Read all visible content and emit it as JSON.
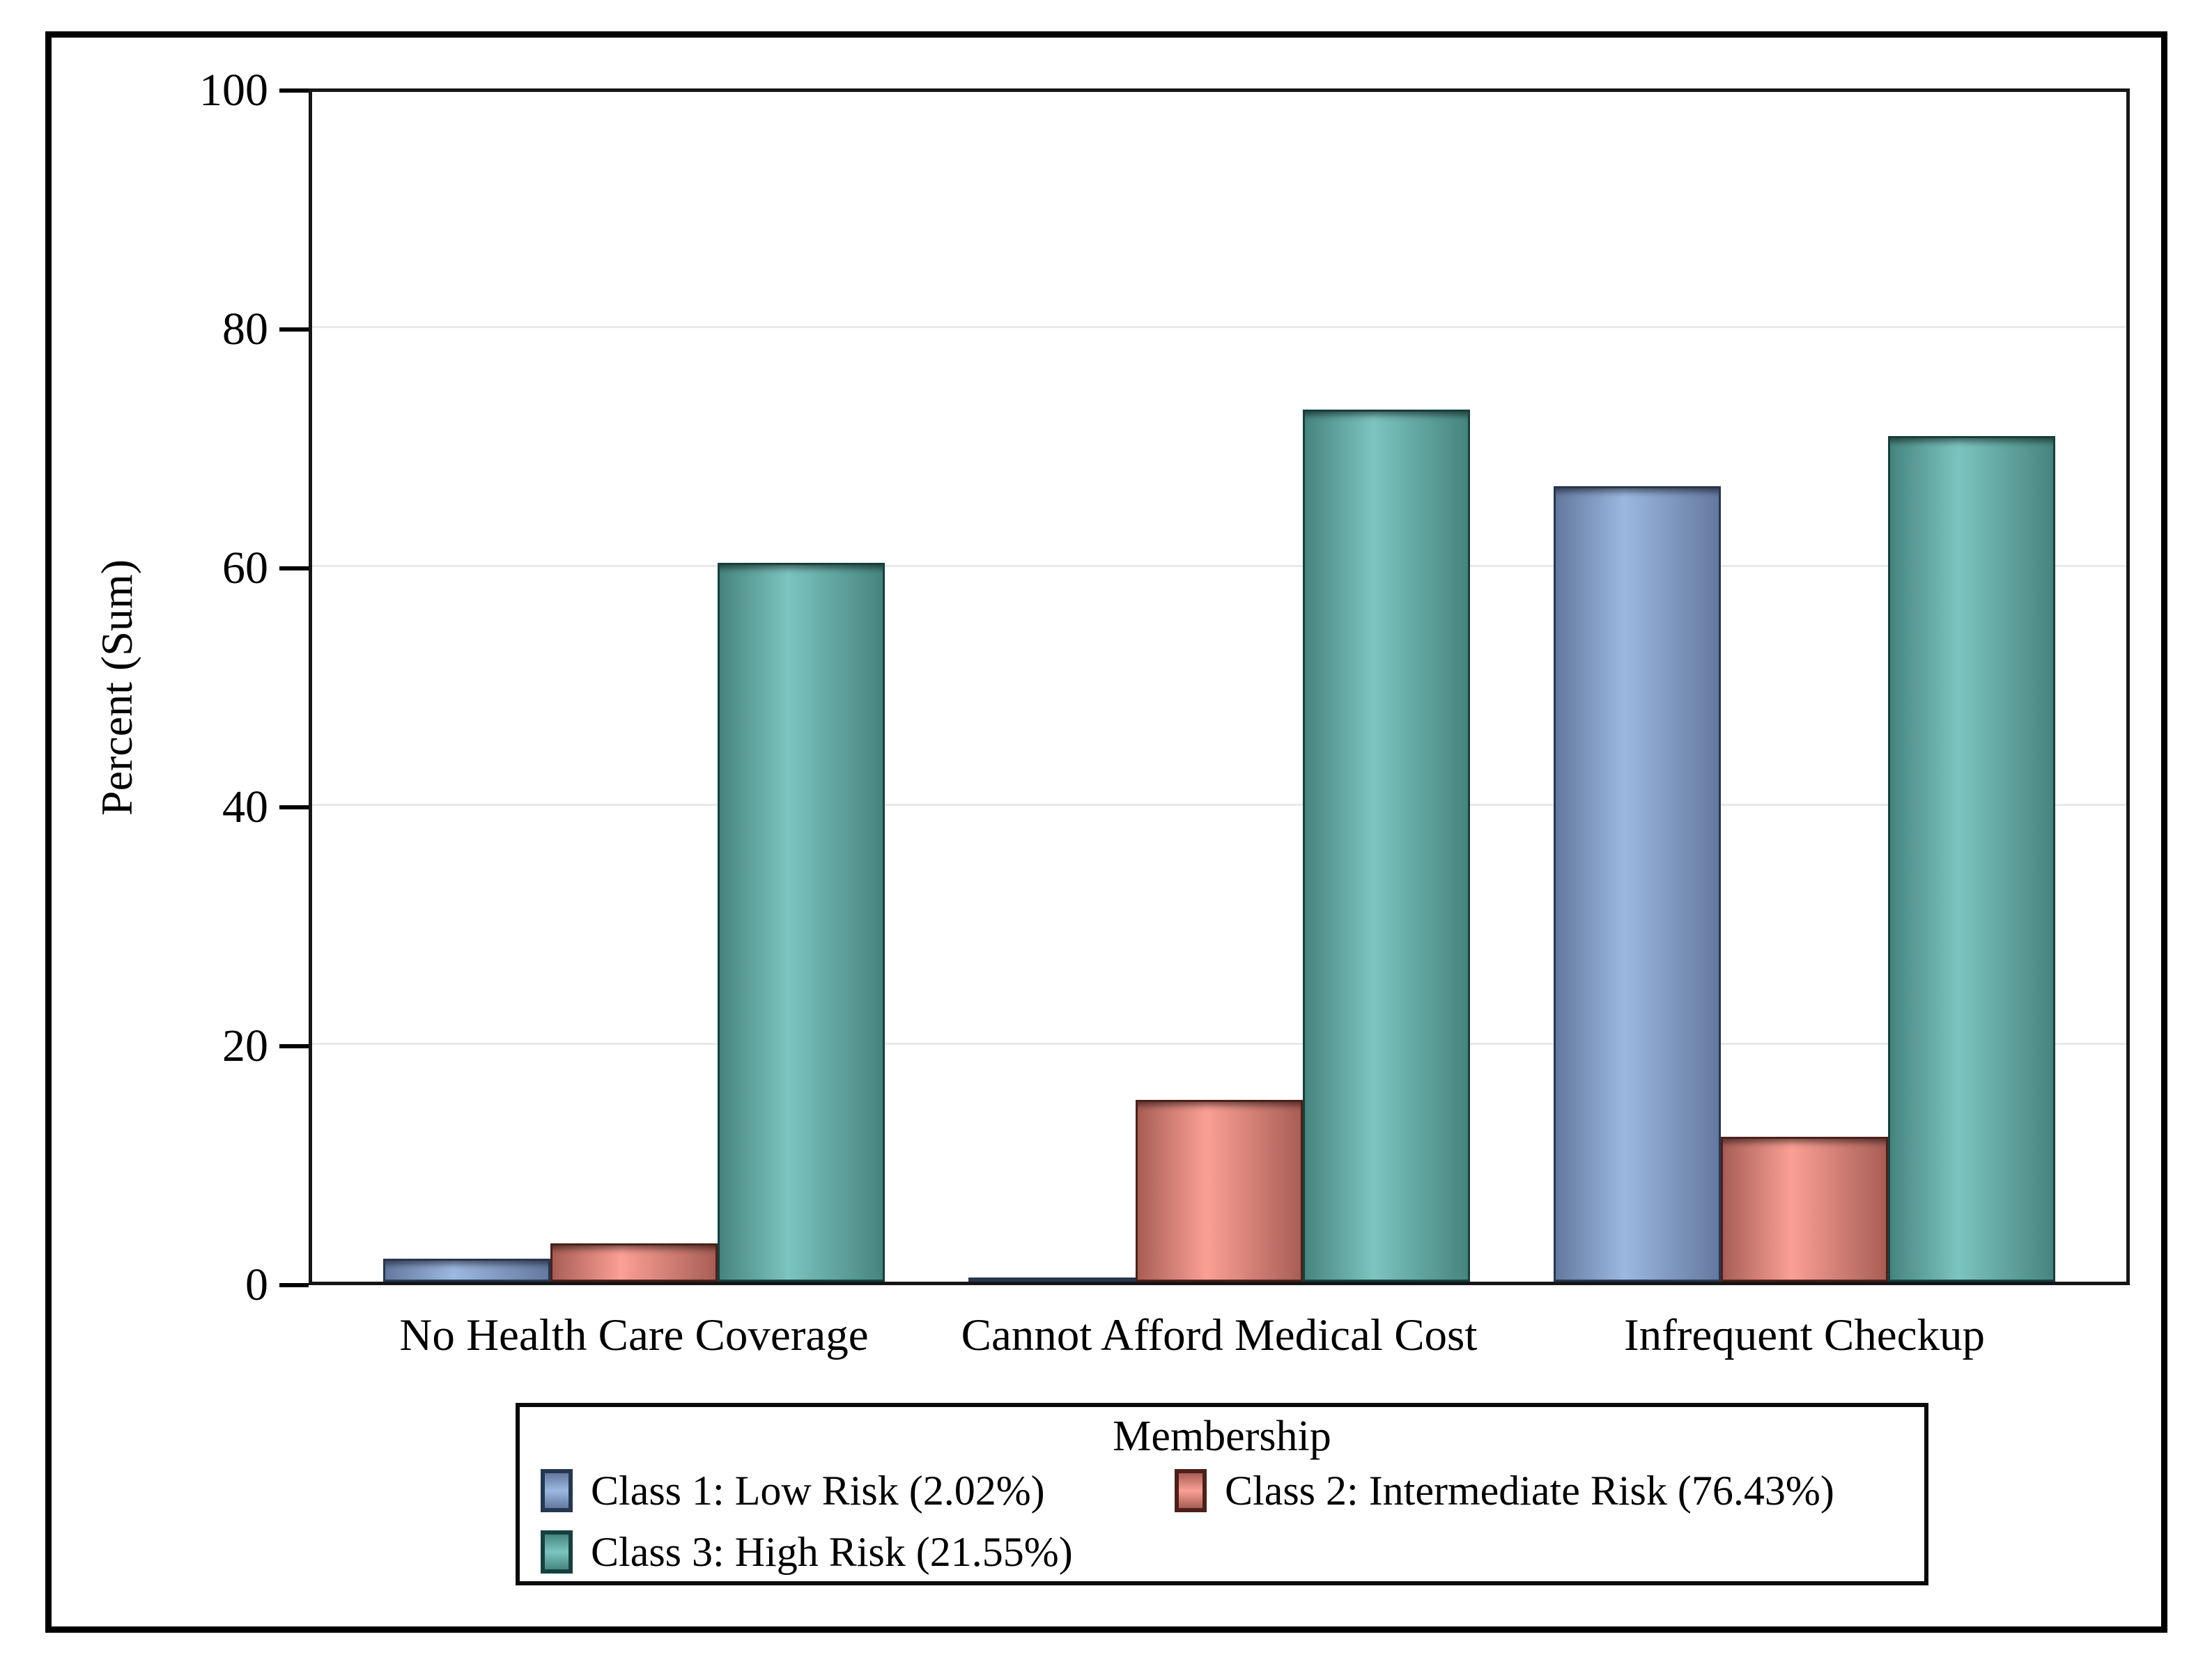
{
  "chart_data": {
    "type": "bar",
    "title": "",
    "xlabel": "",
    "ylabel": "Percent (Sum)",
    "ylim": [
      0,
      100
    ],
    "yticks": [
      0,
      20,
      40,
      60,
      80,
      100
    ],
    "grid": "horizontal-light",
    "legend_position": "bottom",
    "legend_title": "Membership",
    "categories": [
      "No Health Care Coverage",
      "Cannot Afford Medical Cost",
      "Infrequent Checkup"
    ],
    "series": [
      {
        "name": "Class 1: Low Risk (2.02%)",
        "values": [
          1.9,
          0.3,
          66.6
        ],
        "color": "#8fa8d0",
        "color_dark": "#64799f",
        "color_light": "#9cb8e0",
        "border_color": "#263751"
      },
      {
        "name": "Class 2: Intermediate Risk (76.43%)",
        "values": [
          3.2,
          15.2,
          12.1
        ],
        "color": "#f59e92",
        "color_dark": "#a85e55",
        "color_light": "#fba095",
        "border_color": "#4d201a"
      },
      {
        "name": "Class 3: High Risk (21.55%)",
        "values": [
          60.2,
          73.0,
          70.8
        ],
        "color": "#6fbdb8",
        "color_dark": "#46857f",
        "color_light": "#7cc4bf",
        "border_color": "#16403d"
      }
    ]
  },
  "legend": {
    "title": "Membership",
    "items": [
      {
        "label": "Class 1: Low Risk (2.02%)"
      },
      {
        "label": "Class 2: Intermediate Risk (76.43%)"
      },
      {
        "label": "Class 3: High Risk (21.55%)"
      }
    ]
  }
}
